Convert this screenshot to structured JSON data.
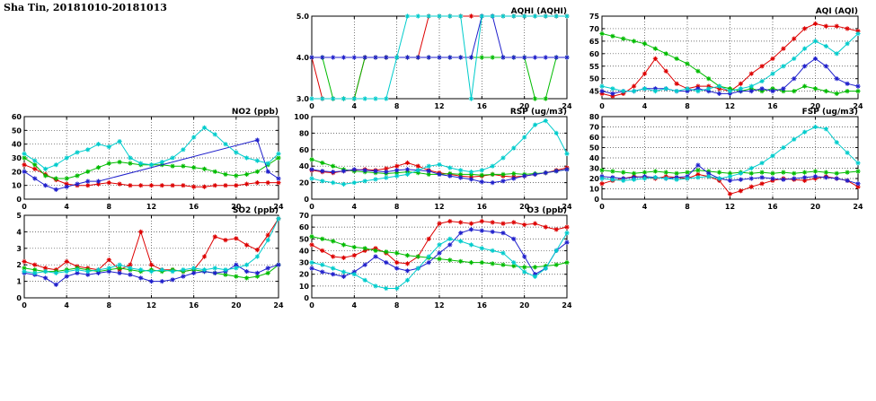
{
  "page_title": "Sha Tin, 20181010-20181013",
  "chart_data": [
    {
      "type": "line",
      "title": "AQHI (AQHI)",
      "xlabel": "",
      "ylabel": "AQHI",
      "xlim": [
        0,
        24
      ],
      "xticks": [
        0,
        4,
        8,
        12,
        16,
        20,
        24
      ],
      "ylim": [
        3,
        5
      ],
      "yticks": [
        3,
        4,
        5
      ],
      "ytick_decimals": 1,
      "grid": true,
      "legend": "none",
      "x_step_hours": 1,
      "series": [
        {
          "name": "red",
          "color": "#dd0000",
          "values": [
            4,
            3,
            3,
            3,
            3,
            4,
            4,
            4,
            4,
            4,
            4,
            5,
            5,
            5,
            5,
            5,
            5,
            5,
            5,
            5,
            5,
            5,
            5,
            5,
            5
          ]
        },
        {
          "name": "green",
          "color": "#00bb00",
          "values": [
            4,
            4,
            3,
            3,
            3,
            4,
            4,
            4,
            4,
            4,
            4,
            4,
            4,
            4,
            4,
            4,
            4,
            4,
            4,
            4,
            4,
            3,
            3,
            4,
            4
          ]
        },
        {
          "name": "blue",
          "color": "#2020cc",
          "values": [
            4,
            4,
            4,
            4,
            4,
            4,
            4,
            4,
            4,
            4,
            4,
            4,
            4,
            4,
            4,
            4,
            5,
            5,
            4,
            4,
            4,
            4,
            4,
            4,
            4
          ]
        },
        {
          "name": "cyan",
          "color": "#00cccc",
          "values": [
            3,
            3,
            3,
            3,
            3,
            3,
            3,
            3,
            4,
            5,
            5,
            5,
            5,
            5,
            5,
            3,
            5,
            5,
            5,
            5,
            5,
            5,
            5,
            5,
            5
          ]
        }
      ]
    },
    {
      "type": "line",
      "title": "AQI (AQI)",
      "xlabel": "",
      "ylabel": "AQI",
      "xlim": [
        0,
        24
      ],
      "xticks": [
        0,
        4,
        8,
        12,
        16,
        20,
        24
      ],
      "ylim": [
        42,
        75
      ],
      "yticks": [
        45,
        50,
        55,
        60,
        65,
        70,
        75
      ],
      "ytick_decimals": 0,
      "grid": true,
      "legend": "none",
      "x_step_hours": 1,
      "series": [
        {
          "name": "red",
          "color": "#dd0000",
          "values": [
            44,
            43,
            44,
            47,
            52,
            58,
            53,
            48,
            46,
            47,
            47,
            46,
            45,
            48,
            52,
            55,
            58,
            62,
            66,
            70,
            72,
            71,
            71,
            70,
            69
          ]
        },
        {
          "name": "green",
          "color": "#00bb00",
          "values": [
            68,
            67,
            66,
            65,
            64,
            62,
            60,
            58,
            56,
            53,
            50,
            47,
            46,
            45,
            46,
            45,
            46,
            45,
            45,
            47,
            46,
            45,
            44,
            45,
            45
          ]
        },
        {
          "name": "blue",
          "color": "#2020cc",
          "values": [
            45,
            44,
            45,
            45,
            46,
            46,
            46,
            45,
            45,
            46,
            45,
            44,
            44,
            45,
            45,
            46,
            45,
            46,
            50,
            55,
            58,
            55,
            50,
            48,
            47
          ]
        },
        {
          "name": "cyan",
          "color": "#00cccc",
          "values": [
            47,
            46,
            45,
            45,
            46,
            45,
            46,
            45,
            46,
            45,
            46,
            47,
            45,
            46,
            47,
            49,
            52,
            55,
            58,
            62,
            65,
            63,
            60,
            64,
            68
          ]
        }
      ]
    },
    {
      "type": "line",
      "title": "NO2 (ppb)",
      "xlabel": "",
      "ylabel": "NO2 ppb",
      "xlim": [
        0,
        24
      ],
      "xticks": [
        0,
        4,
        8,
        12,
        16,
        20,
        24
      ],
      "ylim": [
        0,
        60
      ],
      "yticks": [
        0,
        10,
        20,
        30,
        40,
        50,
        60
      ],
      "ytick_decimals": 0,
      "grid": true,
      "legend": "none",
      "x_step_hours": 1,
      "series": [
        {
          "name": "red",
          "color": "#dd0000",
          "values": [
            25,
            22,
            18,
            14,
            11,
            10,
            10,
            11,
            12,
            11,
            10,
            10,
            10,
            10,
            10,
            10,
            9,
            9,
            10,
            10,
            10,
            11,
            12,
            12,
            12
          ]
        },
        {
          "name": "green",
          "color": "#00bb00",
          "values": [
            30,
            25,
            17,
            15,
            15,
            17,
            20,
            23,
            26,
            27,
            26,
            25,
            25,
            25,
            24,
            24,
            23,
            22,
            20,
            18,
            17,
            18,
            20,
            25,
            30
          ]
        },
        {
          "name": "blue",
          "color": "#2020cc",
          "values": [
            20,
            15,
            10,
            7,
            9,
            11,
            13,
            13,
            null,
            null,
            null,
            null,
            null,
            null,
            null,
            null,
            null,
            null,
            null,
            null,
            null,
            null,
            43,
            20,
            15
          ]
        },
        {
          "name": "cyan",
          "color": "#00cccc",
          "values": [
            33,
            28,
            22,
            25,
            30,
            34,
            36,
            40,
            38,
            42,
            30,
            26,
            25,
            27,
            30,
            36,
            45,
            52,
            47,
            40,
            34,
            30,
            28,
            26,
            33
          ]
        }
      ]
    },
    {
      "type": "line",
      "title": "RSP (ug/m3)",
      "xlabel": "",
      "ylabel": "RSP ug/m3",
      "xlim": [
        0,
        24
      ],
      "xticks": [
        0,
        4,
        8,
        12,
        16,
        20,
        24
      ],
      "ylim": [
        0,
        100
      ],
      "yticks": [
        0,
        20,
        40,
        60,
        80,
        100
      ],
      "ytick_decimals": 0,
      "grid": true,
      "legend": "none",
      "x_step_hours": 1,
      "series": [
        {
          "name": "red",
          "color": "#dd0000",
          "values": [
            35,
            33,
            32,
            34,
            35,
            36,
            35,
            37,
            40,
            44,
            40,
            35,
            32,
            30,
            28,
            27,
            28,
            30,
            28,
            27,
            28,
            30,
            32,
            35,
            38
          ]
        },
        {
          "name": "green",
          "color": "#00bb00",
          "values": [
            48,
            44,
            40,
            36,
            34,
            33,
            32,
            31,
            32,
            33,
            32,
            30,
            30,
            31,
            30,
            30,
            29,
            30,
            30,
            31,
            30,
            31,
            32,
            34,
            36
          ]
        },
        {
          "name": "blue",
          "color": "#2020cc",
          "values": [
            36,
            34,
            33,
            34,
            36,
            35,
            34,
            33,
            35,
            36,
            35,
            34,
            30,
            28,
            26,
            24,
            21,
            20,
            22,
            25,
            28,
            30,
            32,
            34,
            36
          ]
        },
        {
          "name": "cyan",
          "color": "#00cccc",
          "values": [
            25,
            22,
            20,
            18,
            20,
            22,
            24,
            26,
            28,
            30,
            35,
            40,
            42,
            38,
            35,
            33,
            35,
            40,
            50,
            62,
            75,
            90,
            95,
            80,
            55
          ]
        }
      ]
    },
    {
      "type": "line",
      "title": "FSP (ug/m3)",
      "xlabel": "",
      "ylabel": "FSP ug/m3",
      "xlim": [
        0,
        24
      ],
      "xticks": [
        0,
        4,
        8,
        12,
        16,
        20,
        24
      ],
      "ylim": [
        0,
        80
      ],
      "yticks": [
        0,
        10,
        20,
        30,
        40,
        50,
        60,
        70,
        80
      ],
      "ytick_decimals": 0,
      "grid": true,
      "legend": "none",
      "x_step_hours": 1,
      "series": [
        {
          "name": "red",
          "color": "#dd0000",
          "values": [
            15,
            18,
            20,
            22,
            21,
            20,
            22,
            21,
            20,
            24,
            22,
            18,
            5,
            8,
            12,
            15,
            18,
            20,
            19,
            18,
            20,
            22,
            20,
            18,
            12
          ]
        },
        {
          "name": "green",
          "color": "#00bb00",
          "values": [
            28,
            27,
            26,
            25,
            26,
            27,
            26,
            25,
            26,
            28,
            27,
            26,
            25,
            26,
            25,
            26,
            25,
            26,
            25,
            26,
            27,
            26,
            25,
            26,
            27
          ]
        },
        {
          "name": "blue",
          "color": "#2020cc",
          "values": [
            22,
            21,
            20,
            21,
            22,
            21,
            20,
            21,
            22,
            33,
            25,
            20,
            18,
            19,
            20,
            21,
            20,
            19,
            20,
            21,
            22,
            21,
            20,
            18,
            15
          ]
        },
        {
          "name": "cyan",
          "color": "#00cccc",
          "values": [
            20,
            19,
            18,
            19,
            20,
            21,
            20,
            19,
            20,
            21,
            22,
            20,
            22,
            25,
            30,
            35,
            42,
            50,
            58,
            65,
            70,
            68,
            55,
            45,
            35
          ]
        }
      ]
    },
    {
      "type": "line",
      "title": "SO2 (ppb)",
      "xlabel": "",
      "ylabel": "SO2 ppb",
      "xlim": [
        0,
        24
      ],
      "xticks": [
        0,
        4,
        8,
        12,
        16,
        20,
        24
      ],
      "ylim": [
        0,
        5
      ],
      "yticks": [
        0,
        1,
        2,
        3,
        4,
        5
      ],
      "ytick_decimals": 0,
      "grid": true,
      "legend": "none",
      "x_step_hours": 1,
      "series": [
        {
          "name": "red",
          "color": "#dd0000",
          "values": [
            2.2,
            2.0,
            1.8,
            1.7,
            2.2,
            1.9,
            1.8,
            1.7,
            2.3,
            1.7,
            2.0,
            4.0,
            2.0,
            1.7,
            1.7,
            1.6,
            1.7,
            2.5,
            3.7,
            3.5,
            3.6,
            3.2,
            2.9,
            3.8,
            4.8
          ]
        },
        {
          "name": "green",
          "color": "#00bb00",
          "values": [
            1.8,
            1.7,
            1.6,
            1.6,
            1.7,
            1.8,
            1.7,
            1.6,
            1.7,
            1.8,
            1.7,
            1.6,
            1.7,
            1.6,
            1.7,
            1.6,
            1.7,
            1.6,
            1.5,
            1.4,
            1.3,
            1.2,
            1.3,
            1.5,
            2.0
          ]
        },
        {
          "name": "blue",
          "color": "#2020cc",
          "values": [
            1.5,
            1.4,
            1.2,
            0.8,
            1.3,
            1.5,
            1.4,
            1.5,
            1.6,
            1.5,
            1.4,
            1.2,
            1.0,
            1.0,
            1.1,
            1.3,
            1.5,
            1.6,
            1.5,
            1.6,
            2.0,
            1.6,
            1.5,
            1.8,
            2.0
          ]
        },
        {
          "name": "cyan",
          "color": "#00cccc",
          "values": [
            1.6,
            1.5,
            1.6,
            1.5,
            1.6,
            1.7,
            1.6,
            1.7,
            1.8,
            2.0,
            1.8,
            1.7,
            1.6,
            1.7,
            1.6,
            1.7,
            1.8,
            1.7,
            1.8,
            1.7,
            1.8,
            2.0,
            2.5,
            3.5,
            4.8
          ]
        }
      ]
    },
    {
      "type": "line",
      "title": "O3 (ppb)",
      "xlabel": "",
      "ylabel": "O3 ppb",
      "xlim": [
        0,
        24
      ],
      "xticks": [
        0,
        4,
        8,
        12,
        16,
        20,
        24
      ],
      "ylim": [
        0,
        70
      ],
      "yticks": [
        0,
        10,
        20,
        30,
        40,
        50,
        60,
        70
      ],
      "ytick_decimals": 0,
      "grid": true,
      "legend": "none",
      "x_step_hours": 1,
      "series": [
        {
          "name": "red",
          "color": "#dd0000",
          "values": [
            45,
            40,
            35,
            34,
            36,
            40,
            42,
            38,
            30,
            29,
            35,
            50,
            63,
            65,
            64,
            63,
            65,
            64,
            63,
            64,
            62,
            63,
            60,
            58,
            60
          ]
        },
        {
          "name": "green",
          "color": "#00bb00",
          "values": [
            52,
            50,
            48,
            45,
            43,
            42,
            40,
            39,
            38,
            36,
            35,
            34,
            33,
            32,
            31,
            30,
            30,
            29,
            28,
            27,
            26,
            26,
            27,
            28,
            30
          ]
        },
        {
          "name": "blue",
          "color": "#2020cc",
          "values": [
            25,
            22,
            20,
            18,
            22,
            28,
            35,
            30,
            25,
            23,
            25,
            30,
            38,
            45,
            55,
            58,
            57,
            56,
            55,
            50,
            35,
            20,
            25,
            40,
            47
          ]
        },
        {
          "name": "cyan",
          "color": "#00cccc",
          "values": [
            30,
            28,
            25,
            22,
            20,
            15,
            10,
            8,
            8,
            15,
            25,
            35,
            45,
            50,
            48,
            45,
            42,
            40,
            38,
            30,
            22,
            18,
            25,
            40,
            55
          ]
        }
      ]
    }
  ]
}
